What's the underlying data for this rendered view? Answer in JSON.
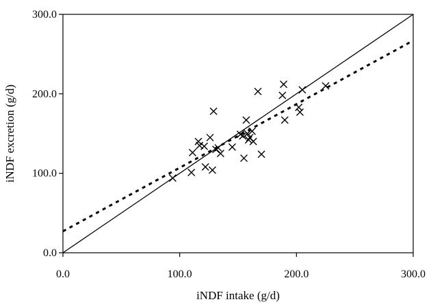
{
  "chart_data": {
    "type": "scatter",
    "title": "",
    "xlabel": "iNDF intake (g/d)",
    "ylabel": "iNDF excretion (g/d)",
    "xlim": [
      0,
      300
    ],
    "ylim": [
      0,
      300
    ],
    "x_ticks": [
      0,
      100,
      200,
      300
    ],
    "y_ticks": [
      0,
      100,
      200,
      300
    ],
    "x_tick_labels": [
      "0.0",
      "100.0",
      "200.0",
      "300.0"
    ],
    "y_tick_labels": [
      "0.0",
      "100.0",
      "200.0",
      "300.0"
    ],
    "grid": false,
    "legend": "none",
    "series": [
      {
        "marker": "x",
        "color": "#000000",
        "points": [
          [
            94,
            94
          ],
          [
            110,
            101
          ],
          [
            111,
            126
          ],
          [
            116,
            140
          ],
          [
            117,
            135
          ],
          [
            121,
            134
          ],
          [
            122,
            108
          ],
          [
            126,
            145
          ],
          [
            128,
            104
          ],
          [
            129,
            178
          ],
          [
            131,
            130
          ],
          [
            133,
            132
          ],
          [
            135,
            125
          ],
          [
            145,
            133
          ],
          [
            152,
            149
          ],
          [
            154,
            147
          ],
          [
            155,
            119
          ],
          [
            157,
            167
          ],
          [
            158,
            150
          ],
          [
            159,
            142
          ],
          [
            160,
            145
          ],
          [
            162,
            153
          ],
          [
            163,
            140
          ],
          [
            167,
            203
          ],
          [
            170,
            124
          ],
          [
            188,
            198
          ],
          [
            189,
            212
          ],
          [
            190,
            167
          ],
          [
            202,
            183
          ],
          [
            203,
            177
          ],
          [
            205,
            205
          ],
          [
            225,
            210
          ]
        ]
      }
    ],
    "lines": [
      {
        "style": "solid",
        "color": "#000000",
        "x": [
          0,
          300
        ],
        "y": [
          0,
          300
        ]
      },
      {
        "style": "dotted",
        "color": "#000000",
        "x": [
          0,
          300
        ],
        "y": [
          27,
          267
        ]
      }
    ]
  }
}
